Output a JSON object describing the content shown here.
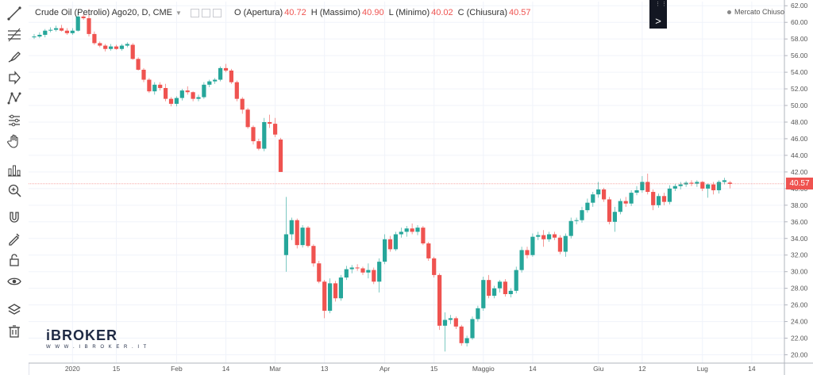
{
  "legend": {
    "symbol": "Crude Oil (Petrolio) Ago20, D, CME",
    "open_label": "O (Apertura)",
    "open_value": "40.72",
    "high_label": "H (Massimo)",
    "high_value": "40.90",
    "low_label": "L (Minimo)",
    "low_value": "40.02",
    "close_label": "C (Chiusura)",
    "close_value": "40.57"
  },
  "market_status": "Mercato Chiuso",
  "last_price": "40.57",
  "logo": {
    "brand": "iBROKER",
    "url": "W W W . I B R O K E R . I T"
  },
  "toolbar": {
    "tools": [
      "trendline-icon",
      "fib-icon",
      "brush-icon",
      "arrow-icon",
      "pattern-icon",
      "forecast-icon",
      "hand-icon",
      "indicators-icon",
      "zoom-icon",
      "magnet-icon",
      "lock-drawing-icon",
      "unlock-icon",
      "eye-icon",
      "layers-icon",
      "trash-icon"
    ]
  },
  "chart_data": {
    "type": "candlestick",
    "ylim": [
      19.0,
      62.5
    ],
    "y_ticks": [
      "62.00",
      "60.00",
      "58.00",
      "56.00",
      "54.00",
      "52.00",
      "50.00",
      "48.00",
      "46.00",
      "44.00",
      "42.00",
      "40.00",
      "38.00",
      "36.00",
      "34.00",
      "32.00",
      "30.00",
      "28.00",
      "26.00",
      "24.00",
      "22.00",
      "20.00"
    ],
    "x_ticks": [
      "2020",
      "15",
      "Feb",
      "14",
      "Mar",
      "13",
      "Apr",
      "15",
      "Maggio",
      "14",
      "Giu",
      "12",
      "Lug",
      "14"
    ],
    "last_price": 40.57,
    "candles": [
      {
        "o": 58.2,
        "h": 58.6,
        "l": 58.0,
        "c": 58.3
      },
      {
        "o": 58.3,
        "h": 58.8,
        "l": 58.1,
        "c": 58.5
      },
      {
        "o": 58.5,
        "h": 59.2,
        "l": 58.2,
        "c": 59.0
      },
      {
        "o": 59.0,
        "h": 59.4,
        "l": 58.8,
        "c": 59.1
      },
      {
        "o": 59.1,
        "h": 59.6,
        "l": 58.9,
        "c": 59.3
      },
      {
        "o": 59.3,
        "h": 59.7,
        "l": 58.9,
        "c": 59.0
      },
      {
        "o": 59.0,
        "h": 59.3,
        "l": 58.5,
        "c": 58.7
      },
      {
        "o": 58.7,
        "h": 59.3,
        "l": 58.5,
        "c": 59.0
      },
      {
        "o": 59.0,
        "h": 61.3,
        "l": 58.9,
        "c": 60.7
      },
      {
        "o": 60.7,
        "h": 61.0,
        "l": 60.3,
        "c": 60.5
      },
      {
        "o": 60.5,
        "h": 61.6,
        "l": 58.3,
        "c": 58.6
      },
      {
        "o": 58.6,
        "h": 58.9,
        "l": 57.3,
        "c": 57.5
      },
      {
        "o": 57.5,
        "h": 57.7,
        "l": 57.0,
        "c": 57.2
      },
      {
        "o": 57.2,
        "h": 57.4,
        "l": 56.5,
        "c": 56.8
      },
      {
        "o": 56.8,
        "h": 57.4,
        "l": 56.6,
        "c": 57.1
      },
      {
        "o": 57.1,
        "h": 57.3,
        "l": 56.7,
        "c": 56.8
      },
      {
        "o": 56.8,
        "h": 57.4,
        "l": 56.6,
        "c": 57.2
      },
      {
        "o": 57.2,
        "h": 57.6,
        "l": 57.0,
        "c": 57.4
      },
      {
        "o": 57.3,
        "h": 57.5,
        "l": 55.5,
        "c": 55.6
      },
      {
        "o": 55.6,
        "h": 55.8,
        "l": 54.2,
        "c": 54.3
      },
      {
        "o": 54.3,
        "h": 54.5,
        "l": 52.8,
        "c": 53.1
      },
      {
        "o": 53.1,
        "h": 53.3,
        "l": 51.5,
        "c": 51.7
      },
      {
        "o": 51.7,
        "h": 52.8,
        "l": 51.3,
        "c": 52.5
      },
      {
        "o": 52.5,
        "h": 52.8,
        "l": 51.8,
        "c": 52.1
      },
      {
        "o": 52.1,
        "h": 52.6,
        "l": 50.5,
        "c": 50.8
      },
      {
        "o": 50.8,
        "h": 51.0,
        "l": 49.9,
        "c": 50.2
      },
      {
        "o": 50.2,
        "h": 51.1,
        "l": 49.9,
        "c": 50.9
      },
      {
        "o": 50.9,
        "h": 52.0,
        "l": 50.6,
        "c": 51.8
      },
      {
        "o": 51.8,
        "h": 52.3,
        "l": 51.3,
        "c": 51.6
      },
      {
        "o": 51.6,
        "h": 51.7,
        "l": 50.5,
        "c": 50.8
      },
      {
        "o": 50.8,
        "h": 51.3,
        "l": 50.5,
        "c": 51.0
      },
      {
        "o": 51.0,
        "h": 52.8,
        "l": 50.8,
        "c": 52.5
      },
      {
        "o": 52.5,
        "h": 53.1,
        "l": 52.2,
        "c": 52.9
      },
      {
        "o": 52.9,
        "h": 53.3,
        "l": 52.6,
        "c": 53.1
      },
      {
        "o": 53.1,
        "h": 54.7,
        "l": 52.9,
        "c": 54.5
      },
      {
        "o": 54.5,
        "h": 55.0,
        "l": 54.0,
        "c": 54.2
      },
      {
        "o": 54.2,
        "h": 54.4,
        "l": 52.6,
        "c": 52.8
      },
      {
        "o": 52.8,
        "h": 53.0,
        "l": 50.5,
        "c": 50.8
      },
      {
        "o": 50.8,
        "h": 51.0,
        "l": 49.0,
        "c": 49.5
      },
      {
        "o": 49.5,
        "h": 49.7,
        "l": 47.2,
        "c": 47.4
      },
      {
        "o": 47.4,
        "h": 47.6,
        "l": 45.3,
        "c": 45.7
      },
      {
        "o": 45.7,
        "h": 46.0,
        "l": 44.6,
        "c": 44.8
      },
      {
        "o": 44.8,
        "h": 48.5,
        "l": 44.5,
        "c": 48.0
      },
      {
        "o": 48.0,
        "h": 48.9,
        "l": 47.3,
        "c": 47.8
      },
      {
        "o": 47.8,
        "h": 48.5,
        "l": 46.2,
        "c": 46.5
      },
      {
        "o": 45.9,
        "h": 46.1,
        "l": 42.0,
        "c": 42.0
      },
      {
        "o": 32.0,
        "h": 39.0,
        "l": 30.0,
        "c": 34.5
      },
      {
        "o": 34.5,
        "h": 36.5,
        "l": 33.8,
        "c": 36.2
      },
      {
        "o": 36.2,
        "h": 36.4,
        "l": 32.8,
        "c": 33.2
      },
      {
        "o": 33.2,
        "h": 35.6,
        "l": 32.9,
        "c": 35.3
      },
      {
        "o": 35.3,
        "h": 35.5,
        "l": 32.9,
        "c": 33.1
      },
      {
        "o": 33.1,
        "h": 33.3,
        "l": 30.6,
        "c": 31.0
      },
      {
        "o": 31.0,
        "h": 31.3,
        "l": 28.6,
        "c": 28.8
      },
      {
        "o": 28.8,
        "h": 29.0,
        "l": 24.4,
        "c": 25.3
      },
      {
        "o": 25.3,
        "h": 29.2,
        "l": 25.0,
        "c": 28.6
      },
      {
        "o": 28.6,
        "h": 28.9,
        "l": 26.4,
        "c": 26.8
      },
      {
        "o": 26.8,
        "h": 29.6,
        "l": 26.5,
        "c": 29.3
      },
      {
        "o": 29.3,
        "h": 30.7,
        "l": 29.0,
        "c": 30.3
      },
      {
        "o": 30.3,
        "h": 30.8,
        "l": 29.8,
        "c": 30.5
      },
      {
        "o": 30.5,
        "h": 30.9,
        "l": 30.1,
        "c": 30.4
      },
      {
        "o": 30.4,
        "h": 30.6,
        "l": 29.6,
        "c": 29.9
      },
      {
        "o": 29.9,
        "h": 31.0,
        "l": 29.2,
        "c": 30.2
      },
      {
        "o": 30.2,
        "h": 30.5,
        "l": 28.5,
        "c": 28.8
      },
      {
        "o": 28.8,
        "h": 31.6,
        "l": 27.5,
        "c": 31.2
      },
      {
        "o": 31.2,
        "h": 34.5,
        "l": 30.9,
        "c": 33.9
      },
      {
        "o": 33.9,
        "h": 34.3,
        "l": 32.4,
        "c": 32.7
      },
      {
        "o": 32.7,
        "h": 34.8,
        "l": 32.5,
        "c": 34.5
      },
      {
        "o": 34.5,
        "h": 35.3,
        "l": 34.1,
        "c": 34.8
      },
      {
        "o": 34.8,
        "h": 35.5,
        "l": 34.2,
        "c": 35.2
      },
      {
        "o": 35.2,
        "h": 35.8,
        "l": 34.5,
        "c": 34.8
      },
      {
        "o": 34.8,
        "h": 35.6,
        "l": 34.4,
        "c": 35.3
      },
      {
        "o": 35.3,
        "h": 35.5,
        "l": 33.2,
        "c": 33.4
      },
      {
        "o": 33.4,
        "h": 33.6,
        "l": 31.3,
        "c": 31.6
      },
      {
        "o": 31.6,
        "h": 31.8,
        "l": 29.3,
        "c": 29.6
      },
      {
        "o": 29.6,
        "h": 29.8,
        "l": 23.0,
        "c": 23.5
      },
      {
        "o": 23.5,
        "h": 25.1,
        "l": 20.4,
        "c": 24.2
      },
      {
        "o": 24.2,
        "h": 24.8,
        "l": 23.7,
        "c": 24.4
      },
      {
        "o": 24.4,
        "h": 24.6,
        "l": 23.1,
        "c": 23.4
      },
      {
        "o": 23.4,
        "h": 23.6,
        "l": 21.1,
        "c": 21.4
      },
      {
        "o": 21.4,
        "h": 22.3,
        "l": 21.0,
        "c": 22.0
      },
      {
        "o": 22.0,
        "h": 24.6,
        "l": 21.8,
        "c": 24.3
      },
      {
        "o": 24.3,
        "h": 25.9,
        "l": 24.0,
        "c": 25.6
      },
      {
        "o": 25.6,
        "h": 29.4,
        "l": 25.3,
        "c": 29.0
      },
      {
        "o": 29.0,
        "h": 29.6,
        "l": 26.8,
        "c": 27.1
      },
      {
        "o": 27.1,
        "h": 28.3,
        "l": 26.8,
        "c": 28.0
      },
      {
        "o": 28.0,
        "h": 29.0,
        "l": 27.5,
        "c": 28.8
      },
      {
        "o": 28.8,
        "h": 29.1,
        "l": 27.0,
        "c": 27.3
      },
      {
        "o": 27.3,
        "h": 28.0,
        "l": 26.9,
        "c": 27.7
      },
      {
        "o": 27.7,
        "h": 30.6,
        "l": 27.4,
        "c": 30.2
      },
      {
        "o": 30.2,
        "h": 33.0,
        "l": 29.9,
        "c": 32.6
      },
      {
        "o": 32.6,
        "h": 33.0,
        "l": 31.6,
        "c": 32.0
      },
      {
        "o": 32.0,
        "h": 34.6,
        "l": 31.8,
        "c": 34.2
      },
      {
        "o": 34.2,
        "h": 34.8,
        "l": 33.8,
        "c": 34.4
      },
      {
        "o": 34.4,
        "h": 35.0,
        "l": 33.0,
        "c": 33.9
      },
      {
        "o": 33.9,
        "h": 34.8,
        "l": 33.6,
        "c": 34.5
      },
      {
        "o": 34.5,
        "h": 34.8,
        "l": 33.8,
        "c": 34.1
      },
      {
        "o": 34.1,
        "h": 34.4,
        "l": 32.1,
        "c": 32.4
      },
      {
        "o": 32.4,
        "h": 34.6,
        "l": 31.8,
        "c": 34.3
      },
      {
        "o": 34.3,
        "h": 36.5,
        "l": 34.0,
        "c": 36.1
      },
      {
        "o": 36.1,
        "h": 36.5,
        "l": 35.7,
        "c": 36.2
      },
      {
        "o": 36.2,
        "h": 37.8,
        "l": 35.9,
        "c": 37.4
      },
      {
        "o": 37.4,
        "h": 38.8,
        "l": 37.1,
        "c": 38.3
      },
      {
        "o": 38.3,
        "h": 39.6,
        "l": 37.8,
        "c": 39.3
      },
      {
        "o": 39.3,
        "h": 40.8,
        "l": 38.9,
        "c": 39.9
      },
      {
        "o": 39.9,
        "h": 40.1,
        "l": 38.4,
        "c": 38.7
      },
      {
        "o": 38.7,
        "h": 39.0,
        "l": 35.7,
        "c": 36.0
      },
      {
        "o": 36.0,
        "h": 37.8,
        "l": 34.8,
        "c": 37.2
      },
      {
        "o": 37.2,
        "h": 38.8,
        "l": 36.9,
        "c": 38.5
      },
      {
        "o": 38.5,
        "h": 39.0,
        "l": 37.8,
        "c": 38.2
      },
      {
        "o": 38.2,
        "h": 39.8,
        "l": 37.9,
        "c": 39.5
      },
      {
        "o": 39.5,
        "h": 40.3,
        "l": 39.2,
        "c": 39.8
      },
      {
        "o": 39.8,
        "h": 41.5,
        "l": 39.5,
        "c": 40.8
      },
      {
        "o": 40.8,
        "h": 41.8,
        "l": 39.3,
        "c": 39.6
      },
      {
        "o": 39.6,
        "h": 39.9,
        "l": 37.4,
        "c": 38.0
      },
      {
        "o": 38.0,
        "h": 39.4,
        "l": 37.7,
        "c": 39.1
      },
      {
        "o": 39.1,
        "h": 39.5,
        "l": 38.0,
        "c": 38.4
      },
      {
        "o": 38.4,
        "h": 40.4,
        "l": 38.1,
        "c": 40.0
      },
      {
        "o": 40.0,
        "h": 40.6,
        "l": 39.7,
        "c": 40.3
      },
      {
        "o": 40.3,
        "h": 40.8,
        "l": 39.9,
        "c": 40.5
      },
      {
        "o": 40.5,
        "h": 40.9,
        "l": 40.2,
        "c": 40.7
      },
      {
        "o": 40.7,
        "h": 41.0,
        "l": 40.3,
        "c": 40.6
      },
      {
        "o": 40.6,
        "h": 41.0,
        "l": 40.2,
        "c": 40.8
      },
      {
        "o": 40.8,
        "h": 40.9,
        "l": 39.7,
        "c": 40.0
      },
      {
        "o": 40.0,
        "h": 40.6,
        "l": 38.9,
        "c": 40.5
      },
      {
        "o": 40.5,
        "h": 40.8,
        "l": 39.3,
        "c": 39.8
      },
      {
        "o": 39.8,
        "h": 41.0,
        "l": 39.4,
        "c": 40.8
      },
      {
        "o": 40.8,
        "h": 41.3,
        "l": 40.5,
        "c": 41.0
      },
      {
        "o": 40.72,
        "h": 40.9,
        "l": 40.02,
        "c": 40.57
      }
    ]
  }
}
